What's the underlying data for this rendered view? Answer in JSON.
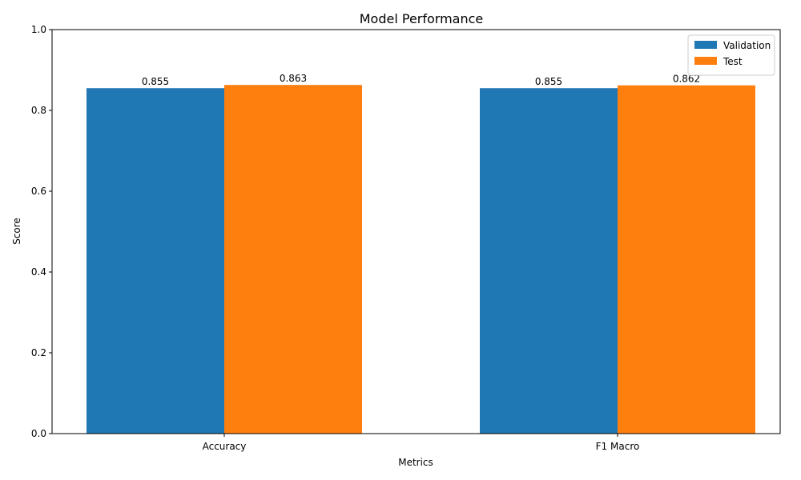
{
  "chart_data": {
    "type": "bar",
    "title": "Model Performance",
    "xlabel": "Metrics",
    "ylabel": "Score",
    "categories": [
      "Accuracy",
      "F1 Macro"
    ],
    "series": [
      {
        "name": "Validation",
        "color": "#1f77b4",
        "values": [
          0.855,
          0.855
        ],
        "labels": [
          "0.855",
          "0.855"
        ]
      },
      {
        "name": "Test",
        "color": "#ff7f0e",
        "values": [
          0.863,
          0.862
        ],
        "labels": [
          "0.863",
          "0.862"
        ]
      }
    ],
    "ylim": [
      0,
      1
    ],
    "yticks": [
      "0.0",
      "0.2",
      "0.4",
      "0.6",
      "0.8",
      "1.0"
    ],
    "grid": false,
    "legend": "top-right"
  }
}
